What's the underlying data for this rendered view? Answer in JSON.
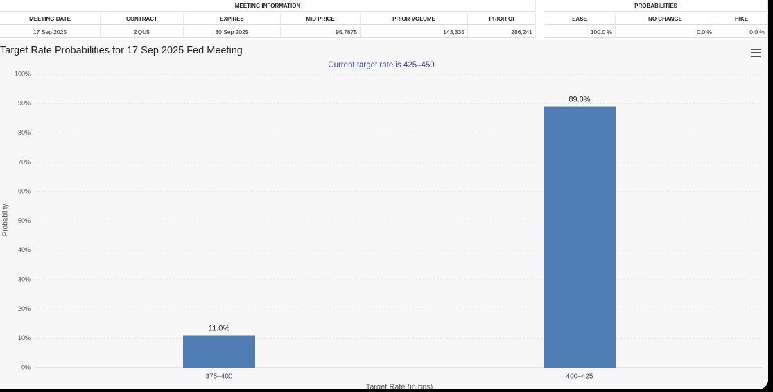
{
  "table": {
    "groups": [
      {
        "label": "MEETING INFORMATION",
        "span": 6
      },
      {
        "label": "PROBABILITIES",
        "span": 3
      }
    ],
    "columns": [
      "MEETING DATE",
      "CONTRACT",
      "EXPIRES",
      "MID PRICE",
      "PRIOR VOLUME",
      "PRIOR OI",
      "EASE",
      "NO CHANGE",
      "HIKE"
    ],
    "rows": [
      [
        "17 Sep 2025",
        "ZQU5",
        "30 Sep 2025",
        "95.7875",
        "143,335",
        "286,241",
        "100.0 %",
        "0.0 %",
        "0.0 %"
      ]
    ]
  },
  "chart_data": {
    "type": "bar",
    "title": "Target Rate Probabilities for 17 Sep 2025 Fed Meeting",
    "subtitle": "Current target rate is 425–450",
    "xlabel": "Target Rate (in bps)",
    "ylabel": "Probability",
    "categories": [
      "375–400",
      "400–425"
    ],
    "values": [
      11.0,
      89.0
    ],
    "value_labels": [
      "11.0%",
      "89.0%"
    ],
    "color": "#4f7db3",
    "ylim": [
      0,
      100
    ],
    "yticks": [
      {
        "value": 0,
        "label": "0%"
      },
      {
        "value": 10,
        "label": "10%"
      },
      {
        "value": 20,
        "label": "20%"
      },
      {
        "value": 30,
        "label": "30%"
      },
      {
        "value": 40,
        "label": "40%"
      },
      {
        "value": 50,
        "label": "50%"
      },
      {
        "value": 60,
        "label": "60%"
      },
      {
        "value": 70,
        "label": "70%"
      },
      {
        "value": 80,
        "label": "80%"
      },
      {
        "value": 90,
        "label": "90%"
      },
      {
        "value": 100,
        "label": "100%"
      }
    ],
    "grid": true
  }
}
